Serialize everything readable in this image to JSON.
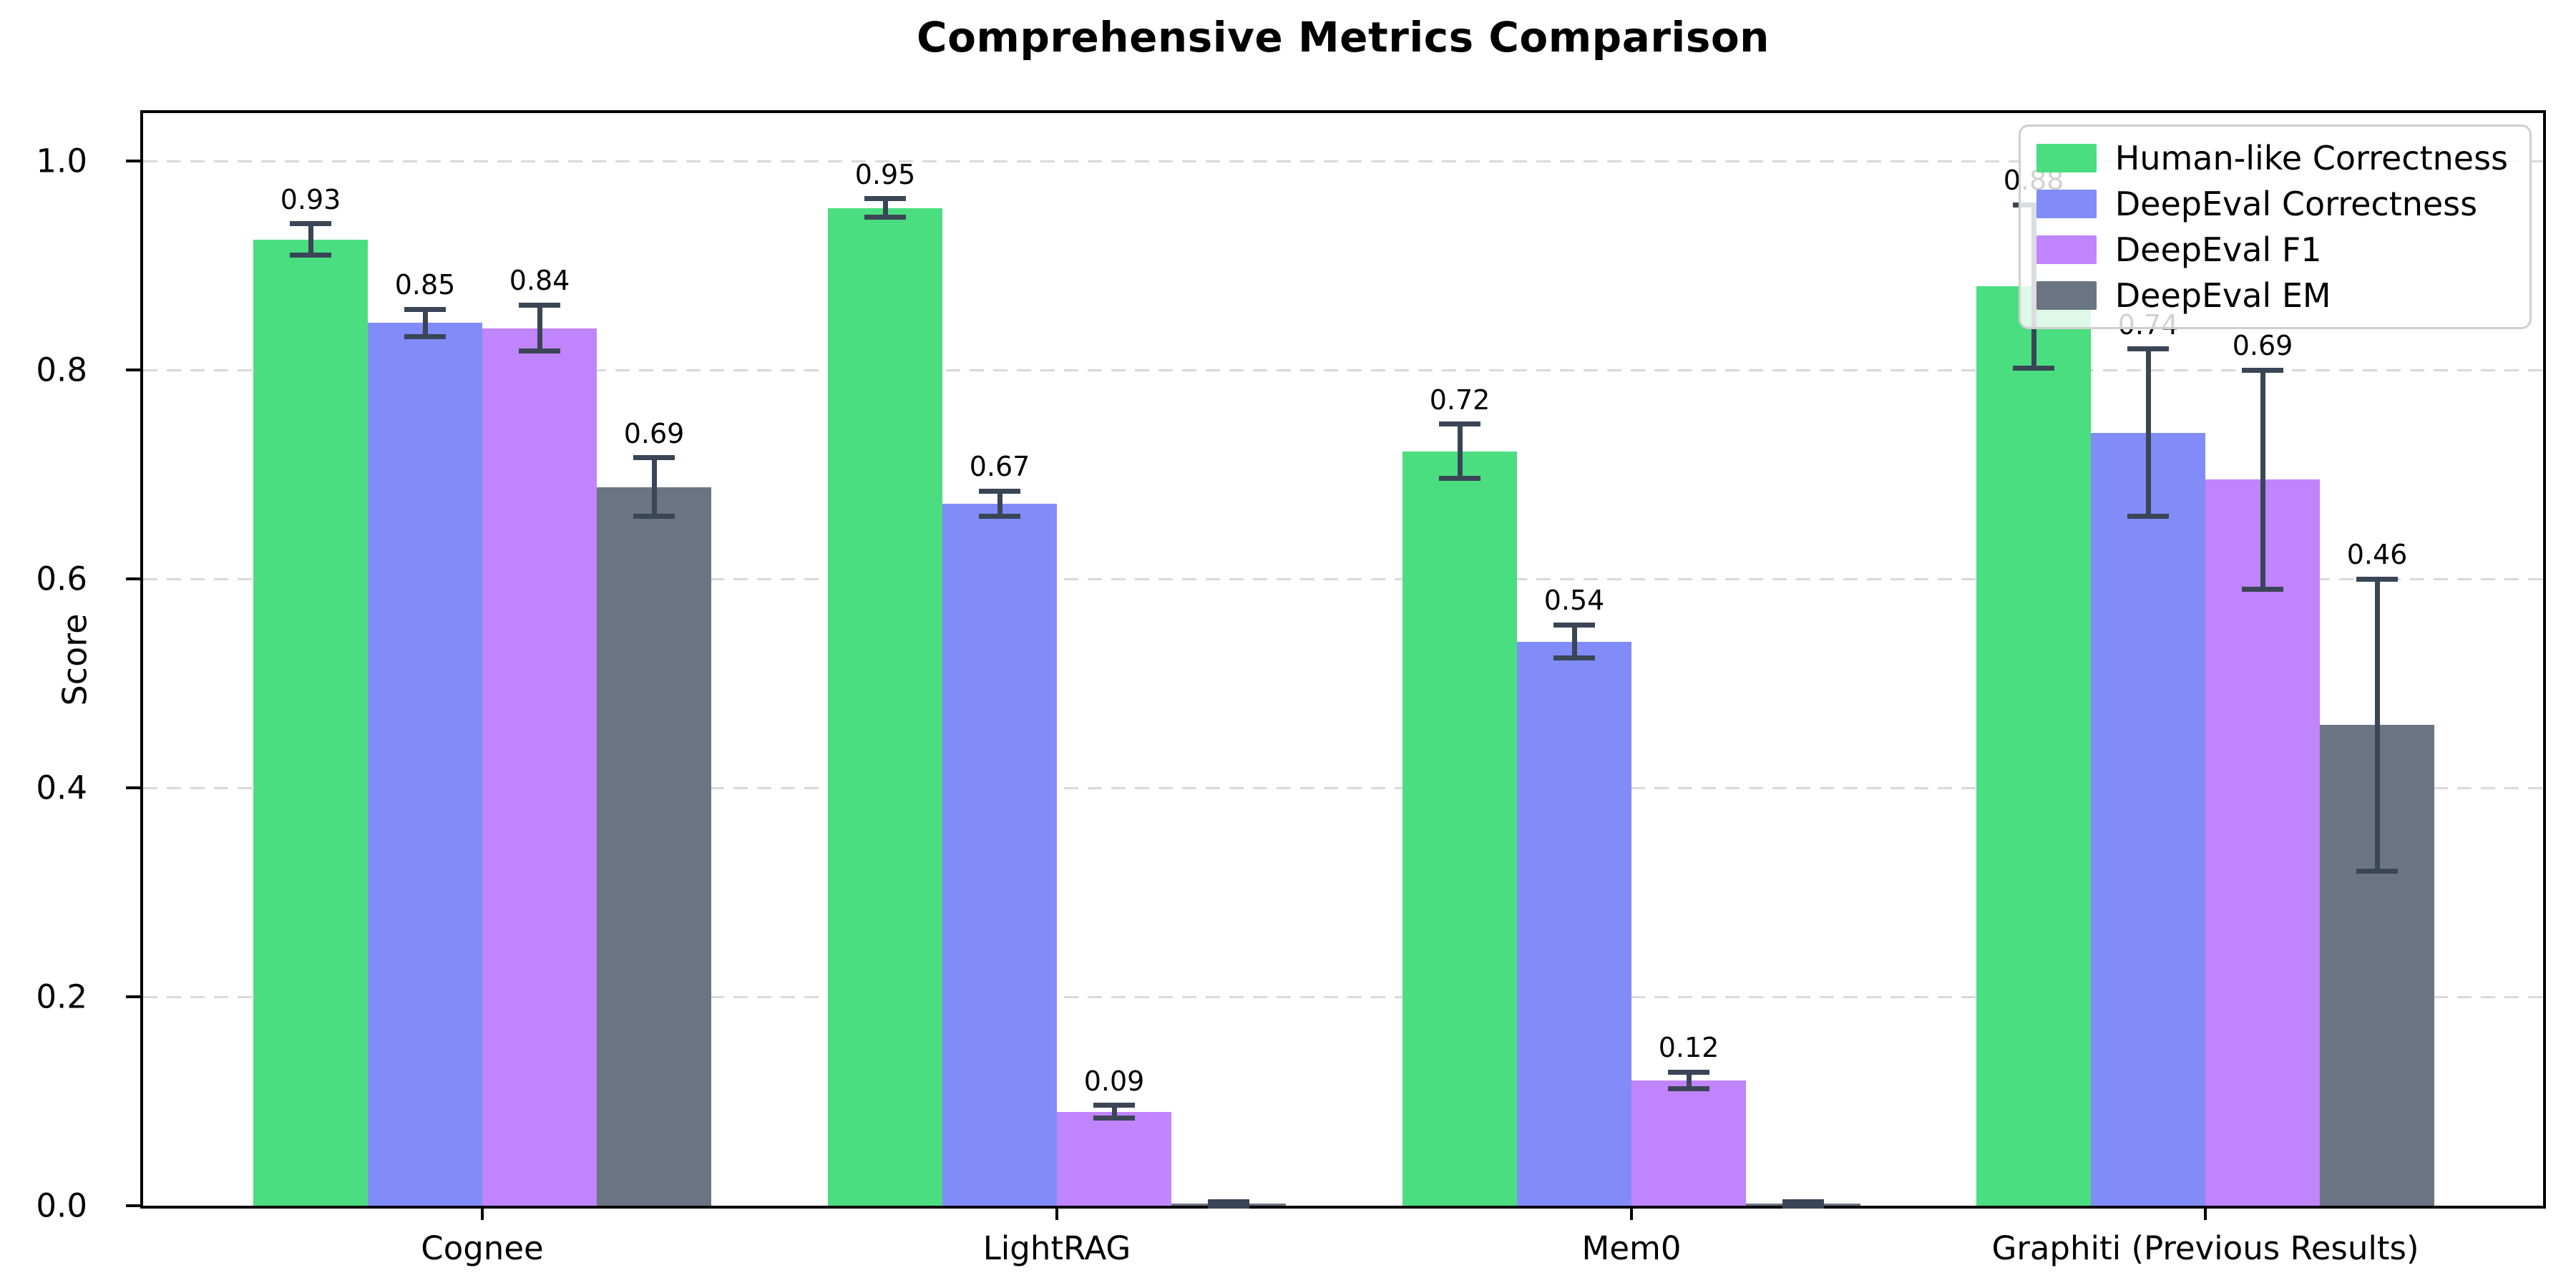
{
  "title": "Comprehensive Metrics Comparison",
  "chart_data": {
    "type": "bar",
    "title": "Comprehensive Metrics Comparison",
    "xlabel": "",
    "ylabel": "Score",
    "categories": [
      "Cognee",
      "LightRAG",
      "Mem0",
      "Graphiti (Previous Results)"
    ],
    "series": [
      {
        "name": "Human-like Correctness",
        "color": "#4ade80",
        "values": [
          0.925,
          0.955,
          0.722,
          0.88
        ],
        "errors": [
          0.015,
          0.009,
          0.026,
          0.078
        ],
        "labels": [
          "0.93",
          "0.95",
          "0.72",
          "0.88"
        ]
      },
      {
        "name": "DeepEval Correctness",
        "color": "#818cf8",
        "values": [
          0.845,
          0.672,
          0.54,
          0.74
        ],
        "errors": [
          0.013,
          0.012,
          0.016,
          0.08
        ],
        "labels": [
          "0.85",
          "0.67",
          "0.54",
          "0.74"
        ]
      },
      {
        "name": "DeepEval F1",
        "color": "#c084fc",
        "values": [
          0.84,
          0.09,
          0.12,
          0.695
        ],
        "errors": [
          0.022,
          0.006,
          0.008,
          0.105
        ],
        "labels": [
          "0.84",
          "0.09",
          "0.12",
          "0.69"
        ]
      },
      {
        "name": "DeepEval EM",
        "color": "#6b7482",
        "values": [
          0.688,
          0.002,
          0.002,
          0.46
        ],
        "errors": [
          0.028,
          0.002,
          0.002,
          0.14
        ],
        "labels": [
          "0.69",
          null,
          null,
          "0.46"
        ]
      }
    ],
    "ylim": [
      0.0,
      1.045
    ],
    "y_ticks": [
      0.0,
      0.2,
      0.4,
      0.6,
      0.8,
      1.0
    ],
    "y_tick_labels": [
      "0.0",
      "0.2",
      "0.4",
      "0.6",
      "0.8",
      "1.0"
    ],
    "grid": "horizontal dashed",
    "legend_position": "upper right",
    "error_bar_color": "#3a4556",
    "value_label_color": "#000000"
  }
}
